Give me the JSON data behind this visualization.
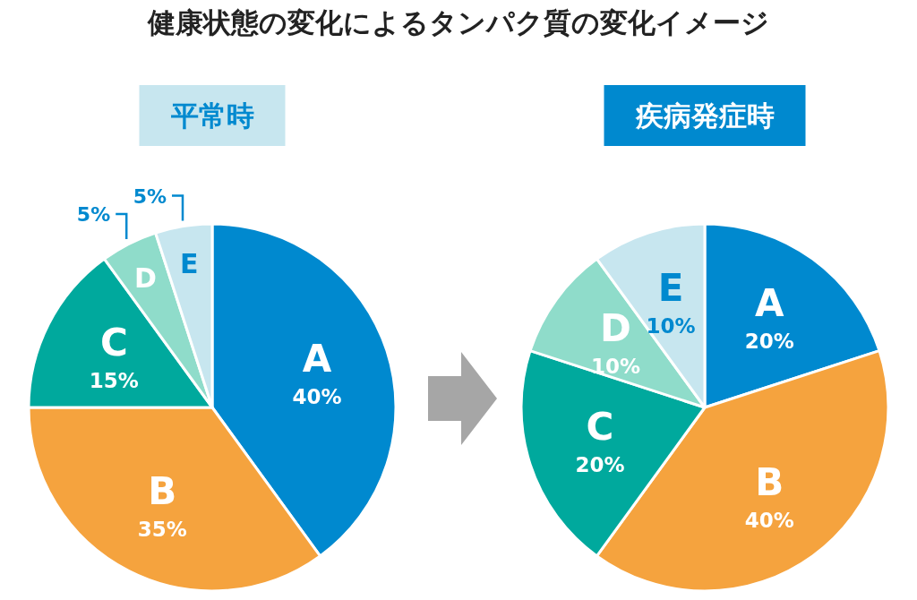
{
  "chart_data": [
    {
      "type": "pie",
      "title": "健康状態の変化によるタンパク質の変化イメージ",
      "subtitle": "平常時",
      "categories": [
        "A",
        "B",
        "C",
        "D",
        "E"
      ],
      "values": [
        40,
        35,
        15,
        5,
        5
      ],
      "colors": [
        "#0089cf",
        "#f5a33e",
        "#00a99d",
        "#8fdcca",
        "#c7e6ef"
      ],
      "value_labels": [
        "40%",
        "35%",
        "15%",
        "5%",
        "5%"
      ]
    },
    {
      "type": "pie",
      "subtitle": "疾病発症時",
      "categories": [
        "A",
        "B",
        "C",
        "D",
        "E"
      ],
      "values": [
        20,
        40,
        20,
        10,
        10
      ],
      "colors": [
        "#0089cf",
        "#f5a33e",
        "#00a99d",
        "#8fdcca",
        "#c7e6ef"
      ],
      "value_labels": [
        "20%",
        "40%",
        "20%",
        "10%",
        "10%"
      ]
    }
  ]
}
